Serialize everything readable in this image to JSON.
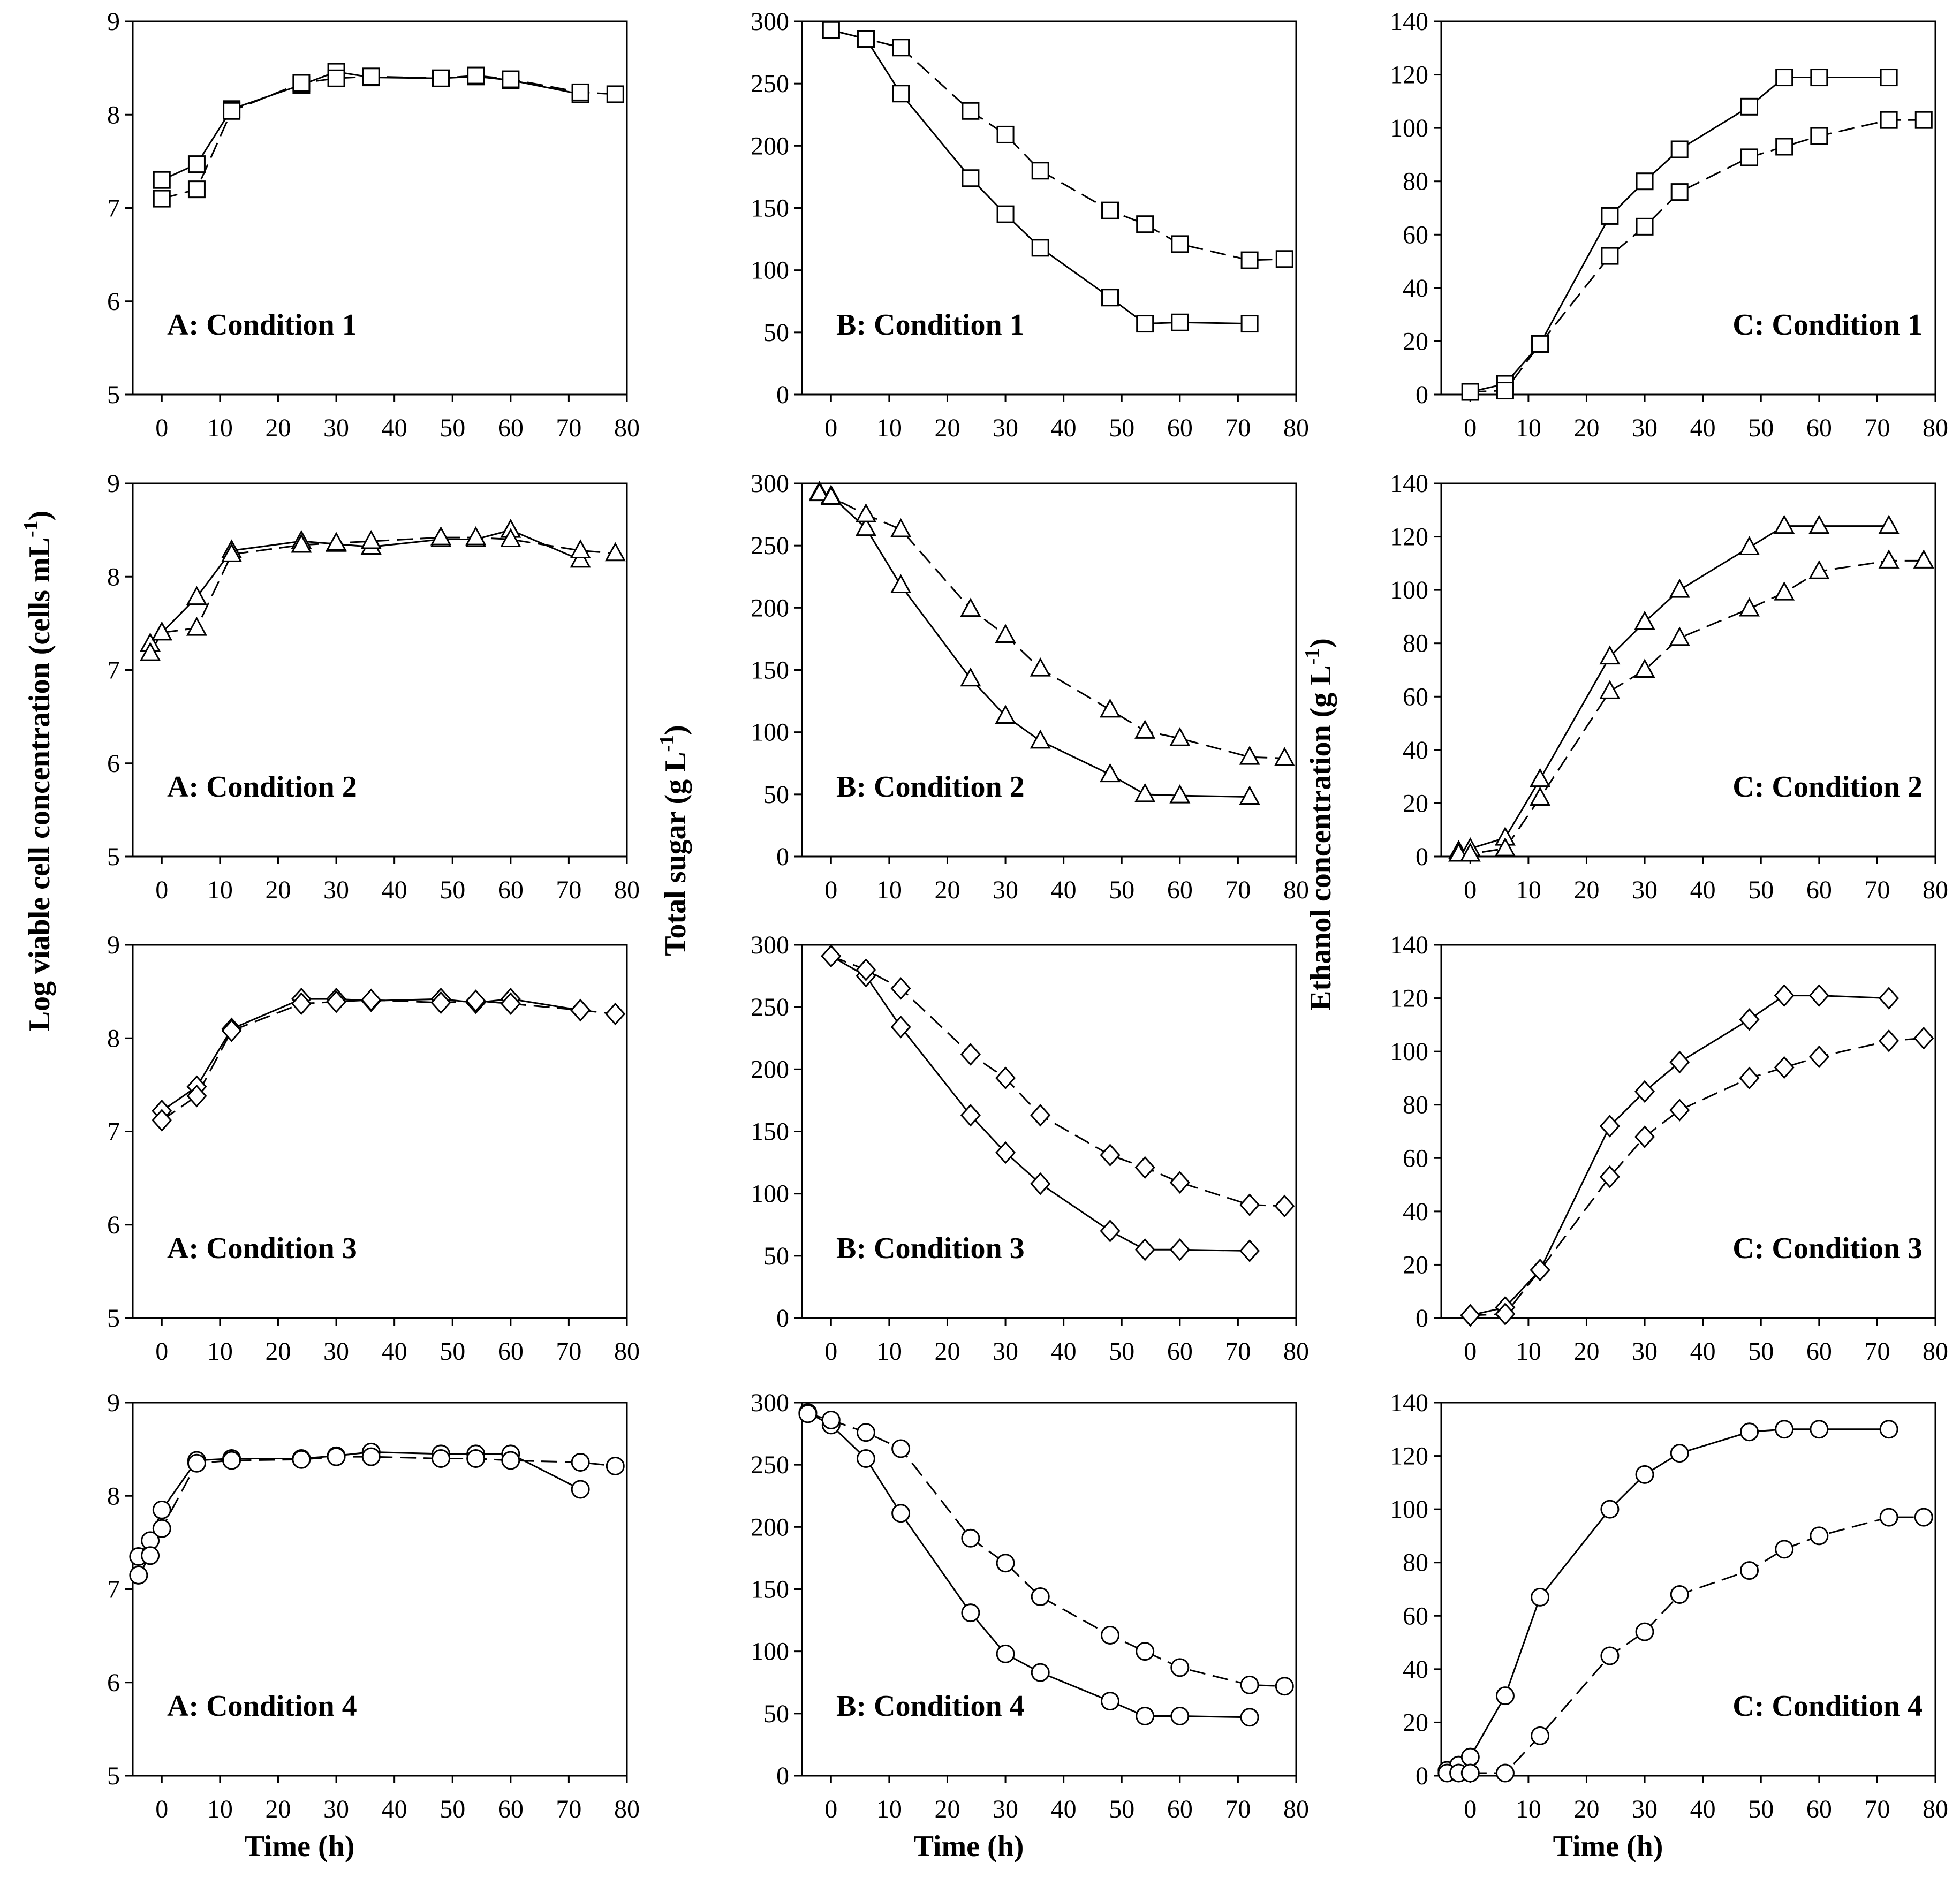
{
  "figure": {
    "ylabel_A": "Log viable cell concentration  (cells mL",
    "ylabel_A_sup": "-1",
    "ylabel_A_tail": ")",
    "ylabel_B": "Total sugar (g L",
    "ylabel_B_sup": "-1",
    "ylabel_B_tail": ")",
    "ylabel_C": "Ethanol concentration (g L",
    "ylabel_C_sup": "-1",
    "ylabel_C_tail": ")",
    "xlabel": "Time (h)"
  },
  "chart_data": [
    {
      "type": "line",
      "title": "A: Condition 1",
      "xlabel": "",
      "ylabel": "Log viable cell concentration  (cells mL-1)",
      "xlim": [
        -5,
        80
      ],
      "ylim": [
        5,
        9
      ],
      "xticks": [
        0,
        10,
        20,
        30,
        40,
        50,
        60,
        70,
        80
      ],
      "yticks": [
        5,
        6,
        7,
        8,
        9
      ],
      "marker": "square",
      "series": [
        {
          "name": "solid",
          "style": "solid",
          "x": [
            0,
            6,
            12,
            24,
            30,
            36,
            48,
            54,
            60,
            72
          ],
          "y": [
            7.3,
            7.47,
            8.06,
            8.32,
            8.46,
            8.4,
            8.39,
            8.41,
            8.37,
            8.22
          ]
        },
        {
          "name": "dashed",
          "style": "dashed",
          "x": [
            0,
            6,
            12,
            24,
            30,
            36,
            48,
            54,
            60,
            72,
            78
          ],
          "y": [
            7.1,
            7.2,
            8.04,
            8.34,
            8.39,
            8.41,
            8.39,
            8.42,
            8.38,
            8.24,
            8.22
          ]
        }
      ]
    },
    {
      "type": "line",
      "title": "B: Condition 1",
      "xlabel": "",
      "ylabel": "",
      "xlim": [
        -5,
        80
      ],
      "ylim": [
        0,
        300
      ],
      "xticks": [
        0,
        10,
        20,
        30,
        40,
        50,
        60,
        70,
        80
      ],
      "yticks": [
        0,
        50,
        100,
        150,
        200,
        250,
        300
      ],
      "marker": "square",
      "series": [
        {
          "name": "solid",
          "style": "solid",
          "x": [
            0,
            6,
            12,
            24,
            30,
            36,
            48,
            54,
            60,
            72
          ],
          "y": [
            293,
            286,
            242,
            174,
            145,
            118,
            78,
            57,
            58,
            57
          ]
        },
        {
          "name": "dashed",
          "style": "dashed",
          "x": [
            0,
            6,
            12,
            24,
            30,
            36,
            48,
            54,
            60,
            72,
            78
          ],
          "y": [
            293,
            286,
            279,
            228,
            209,
            180,
            148,
            137,
            121,
            108,
            109
          ]
        }
      ]
    },
    {
      "type": "line",
      "title": "C: Condition 1",
      "xlabel": "",
      "ylabel": "",
      "xlim": [
        -5,
        80
      ],
      "ylim": [
        0,
        140
      ],
      "xticks": [
        0,
        10,
        20,
        30,
        40,
        50,
        60,
        70,
        80
      ],
      "yticks": [
        0,
        20,
        40,
        60,
        80,
        100,
        120,
        140
      ],
      "marker": "square",
      "series": [
        {
          "name": "solid",
          "style": "solid",
          "x": [
            0,
            6,
            12,
            24,
            30,
            36,
            48,
            54,
            60,
            72
          ],
          "y": [
            1,
            4,
            19,
            67,
            80,
            92,
            108,
            119,
            119,
            119
          ]
        },
        {
          "name": "dashed",
          "style": "dashed",
          "x": [
            0,
            6,
            12,
            24,
            30,
            36,
            48,
            54,
            60,
            72,
            78
          ],
          "y": [
            1,
            1.5,
            19,
            52,
            63,
            76,
            89,
            93,
            97,
            103,
            103
          ]
        }
      ]
    },
    {
      "type": "line",
      "title": "A: Condition 2",
      "xlabel": "",
      "ylabel": "",
      "xlim": [
        -5,
        80
      ],
      "ylim": [
        5,
        9
      ],
      "xticks": [
        0,
        10,
        20,
        30,
        40,
        50,
        60,
        70,
        80
      ],
      "yticks": [
        5,
        6,
        7,
        8,
        9
      ],
      "marker": "triangle",
      "series": [
        {
          "name": "solid",
          "style": "solid",
          "x": [
            -2,
            0,
            6,
            12,
            24,
            30,
            36,
            48,
            54,
            60,
            72
          ],
          "y": [
            7.28,
            7.4,
            7.78,
            8.28,
            8.38,
            8.35,
            8.32,
            8.4,
            8.4,
            8.5,
            8.18
          ]
        },
        {
          "name": "dashed",
          "style": "dashed",
          "x": [
            -2,
            0,
            6,
            12,
            24,
            30,
            36,
            48,
            54,
            60,
            72,
            78
          ],
          "y": [
            7.18,
            7.4,
            7.45,
            8.24,
            8.34,
            8.36,
            8.38,
            8.42,
            8.42,
            8.4,
            8.28,
            8.25
          ]
        }
      ]
    },
    {
      "type": "line",
      "title": "B: Condition 2",
      "xlabel": "",
      "ylabel": "Total sugar (g L-1)",
      "xlim": [
        -5,
        80
      ],
      "ylim": [
        0,
        300
      ],
      "xticks": [
        0,
        10,
        20,
        30,
        40,
        50,
        60,
        70,
        80
      ],
      "yticks": [
        0,
        50,
        100,
        150,
        200,
        250,
        300
      ],
      "marker": "triangle",
      "series": [
        {
          "name": "solid",
          "style": "solid",
          "x": [
            -2,
            0,
            6,
            12,
            24,
            30,
            36,
            48,
            54,
            60,
            72
          ],
          "y": [
            293,
            290,
            264,
            218,
            143,
            113,
            93,
            66,
            50,
            49,
            48
          ]
        },
        {
          "name": "dashed",
          "style": "dashed",
          "x": [
            -2,
            0,
            6,
            12,
            24,
            30,
            36,
            48,
            54,
            60,
            72,
            78
          ],
          "y": [
            292,
            289,
            275,
            263,
            199,
            178,
            151,
            118,
            101,
            95,
            80,
            79
          ]
        }
      ]
    },
    {
      "type": "line",
      "title": "C: Condition 2",
      "xlabel": "",
      "ylabel": "Ethanol concentration (g L-1)",
      "xlim": [
        -5,
        80
      ],
      "ylim": [
        0,
        140
      ],
      "xticks": [
        0,
        10,
        20,
        30,
        40,
        50,
        60,
        70,
        80
      ],
      "yticks": [
        0,
        20,
        40,
        60,
        80,
        100,
        120,
        140
      ],
      "marker": "triangle",
      "series": [
        {
          "name": "solid",
          "style": "solid",
          "x": [
            -2,
            0,
            6,
            12,
            24,
            30,
            36,
            48,
            54,
            60,
            72
          ],
          "y": [
            2,
            3,
            7,
            29,
            75,
            88,
            100,
            116,
            124,
            124,
            124
          ]
        },
        {
          "name": "dashed",
          "style": "dashed",
          "x": [
            -2,
            0,
            6,
            12,
            24,
            30,
            36,
            48,
            54,
            60,
            72,
            78
          ],
          "y": [
            1,
            1,
            3,
            22,
            62,
            70,
            82,
            93,
            99,
            107,
            111,
            111
          ]
        }
      ]
    },
    {
      "type": "line",
      "title": "A: Condition 3",
      "xlabel": "",
      "ylabel": "",
      "xlim": [
        -5,
        80
      ],
      "ylim": [
        5,
        9
      ],
      "xticks": [
        0,
        10,
        20,
        30,
        40,
        50,
        60,
        70,
        80
      ],
      "yticks": [
        5,
        6,
        7,
        8,
        9
      ],
      "marker": "diamond",
      "series": [
        {
          "name": "solid",
          "style": "solid",
          "x": [
            0,
            6,
            12,
            24,
            30,
            36,
            48,
            54,
            60,
            72
          ],
          "y": [
            7.22,
            7.48,
            8.1,
            8.42,
            8.42,
            8.4,
            8.42,
            8.38,
            8.42,
            8.3
          ]
        },
        {
          "name": "dashed",
          "style": "dashed",
          "x": [
            0,
            6,
            12,
            24,
            30,
            36,
            48,
            54,
            60,
            72,
            78
          ],
          "y": [
            7.12,
            7.38,
            8.08,
            8.37,
            8.39,
            8.41,
            8.38,
            8.4,
            8.37,
            8.3,
            8.26
          ]
        }
      ]
    },
    {
      "type": "line",
      "title": "B: Condition 3",
      "xlabel": "",
      "ylabel": "",
      "xlim": [
        -5,
        80
      ],
      "ylim": [
        0,
        300
      ],
      "xticks": [
        0,
        10,
        20,
        30,
        40,
        50,
        60,
        70,
        80
      ],
      "yticks": [
        0,
        50,
        100,
        150,
        200,
        250,
        300
      ],
      "marker": "diamond",
      "series": [
        {
          "name": "solid",
          "style": "solid",
          "x": [
            0,
            6,
            12,
            24,
            30,
            36,
            48,
            54,
            60,
            72
          ],
          "y": [
            291,
            275,
            234,
            163,
            133,
            108,
            70,
            55,
            55,
            54
          ]
        },
        {
          "name": "dashed",
          "style": "dashed",
          "x": [
            0,
            6,
            12,
            24,
            30,
            36,
            48,
            54,
            60,
            72,
            78
          ],
          "y": [
            291,
            280,
            265,
            212,
            193,
            163,
            131,
            121,
            109,
            91,
            90
          ]
        }
      ]
    },
    {
      "type": "line",
      "title": "C: Condition 3",
      "xlabel": "",
      "ylabel": "",
      "xlim": [
        -5,
        80
      ],
      "ylim": [
        0,
        140
      ],
      "xticks": [
        0,
        10,
        20,
        30,
        40,
        50,
        60,
        70,
        80
      ],
      "yticks": [
        0,
        20,
        40,
        60,
        80,
        100,
        120,
        140
      ],
      "marker": "diamond",
      "series": [
        {
          "name": "solid",
          "style": "solid",
          "x": [
            0,
            6,
            12,
            24,
            30,
            36,
            48,
            54,
            60,
            72
          ],
          "y": [
            1,
            4,
            18,
            72,
            85,
            96,
            112,
            121,
            121,
            120
          ]
        },
        {
          "name": "dashed",
          "style": "dashed",
          "x": [
            0,
            6,
            12,
            24,
            30,
            36,
            48,
            54,
            60,
            72,
            78
          ],
          "y": [
            1,
            1.5,
            18,
            53,
            68,
            78,
            90,
            94,
            98,
            104,
            105
          ]
        }
      ]
    },
    {
      "type": "line",
      "title": "A: Condition 4",
      "xlabel": "Time (h)",
      "ylabel": "",
      "xlim": [
        -5,
        80
      ],
      "ylim": [
        5,
        9
      ],
      "xticks": [
        0,
        10,
        20,
        30,
        40,
        50,
        60,
        70,
        80
      ],
      "yticks": [
        5,
        6,
        7,
        8,
        9
      ],
      "marker": "circle",
      "series": [
        {
          "name": "solid",
          "style": "solid",
          "x": [
            -4,
            -2,
            0,
            6,
            12,
            24,
            30,
            36,
            48,
            54,
            60,
            72
          ],
          "y": [
            7.35,
            7.52,
            7.85,
            8.38,
            8.4,
            8.4,
            8.43,
            8.47,
            8.45,
            8.45,
            8.45,
            8.07
          ]
        },
        {
          "name": "dashed",
          "style": "dashed",
          "x": [
            -4,
            -2,
            0,
            6,
            12,
            24,
            30,
            36,
            48,
            54,
            60,
            72,
            78
          ],
          "y": [
            7.15,
            7.36,
            7.65,
            8.35,
            8.38,
            8.39,
            8.42,
            8.42,
            8.4,
            8.4,
            8.38,
            8.36,
            8.32
          ]
        }
      ]
    },
    {
      "type": "line",
      "title": "B: Condition 4",
      "xlabel": "Time (h)",
      "ylabel": "",
      "xlim": [
        -5,
        80
      ],
      "ylim": [
        0,
        300
      ],
      "xticks": [
        0,
        10,
        20,
        30,
        40,
        50,
        60,
        70,
        80
      ],
      "yticks": [
        0,
        50,
        100,
        150,
        200,
        250,
        300
      ],
      "marker": "circle",
      "series": [
        {
          "name": "solid",
          "style": "solid",
          "x": [
            -4,
            0,
            6,
            12,
            24,
            30,
            36,
            48,
            54,
            60,
            72
          ],
          "y": [
            292,
            282,
            255,
            211,
            131,
            98,
            83,
            60,
            48,
            48,
            47
          ]
        },
        {
          "name": "dashed",
          "style": "dashed",
          "x": [
            -4,
            0,
            6,
            12,
            24,
            30,
            36,
            48,
            54,
            60,
            72,
            78
          ],
          "y": [
            291,
            286,
            276,
            263,
            191,
            171,
            144,
            113,
            100,
            87,
            73,
            72
          ]
        }
      ]
    },
    {
      "type": "line",
      "title": "C: Condition 4",
      "xlabel": "Time (h)",
      "ylabel": "",
      "xlim": [
        -5,
        80
      ],
      "ylim": [
        0,
        140
      ],
      "xticks": [
        0,
        10,
        20,
        30,
        40,
        50,
        60,
        70,
        80
      ],
      "yticks": [
        0,
        20,
        40,
        60,
        80,
        100,
        120,
        140
      ],
      "marker": "circle",
      "series": [
        {
          "name": "solid",
          "style": "solid",
          "x": [
            -4,
            -2,
            0,
            6,
            12,
            24,
            30,
            36,
            48,
            54,
            60,
            72
          ],
          "y": [
            2,
            4,
            7,
            30,
            67,
            100,
            113,
            121,
            129,
            130,
            130,
            130
          ]
        },
        {
          "name": "dashed",
          "style": "dashed",
          "x": [
            -4,
            -2,
            0,
            6,
            12,
            24,
            30,
            36,
            48,
            54,
            60,
            72,
            78
          ],
          "y": [
            1,
            1,
            1,
            1,
            15,
            45,
            54,
            68,
            77,
            85,
            90,
            97,
            97
          ]
        }
      ]
    }
  ]
}
